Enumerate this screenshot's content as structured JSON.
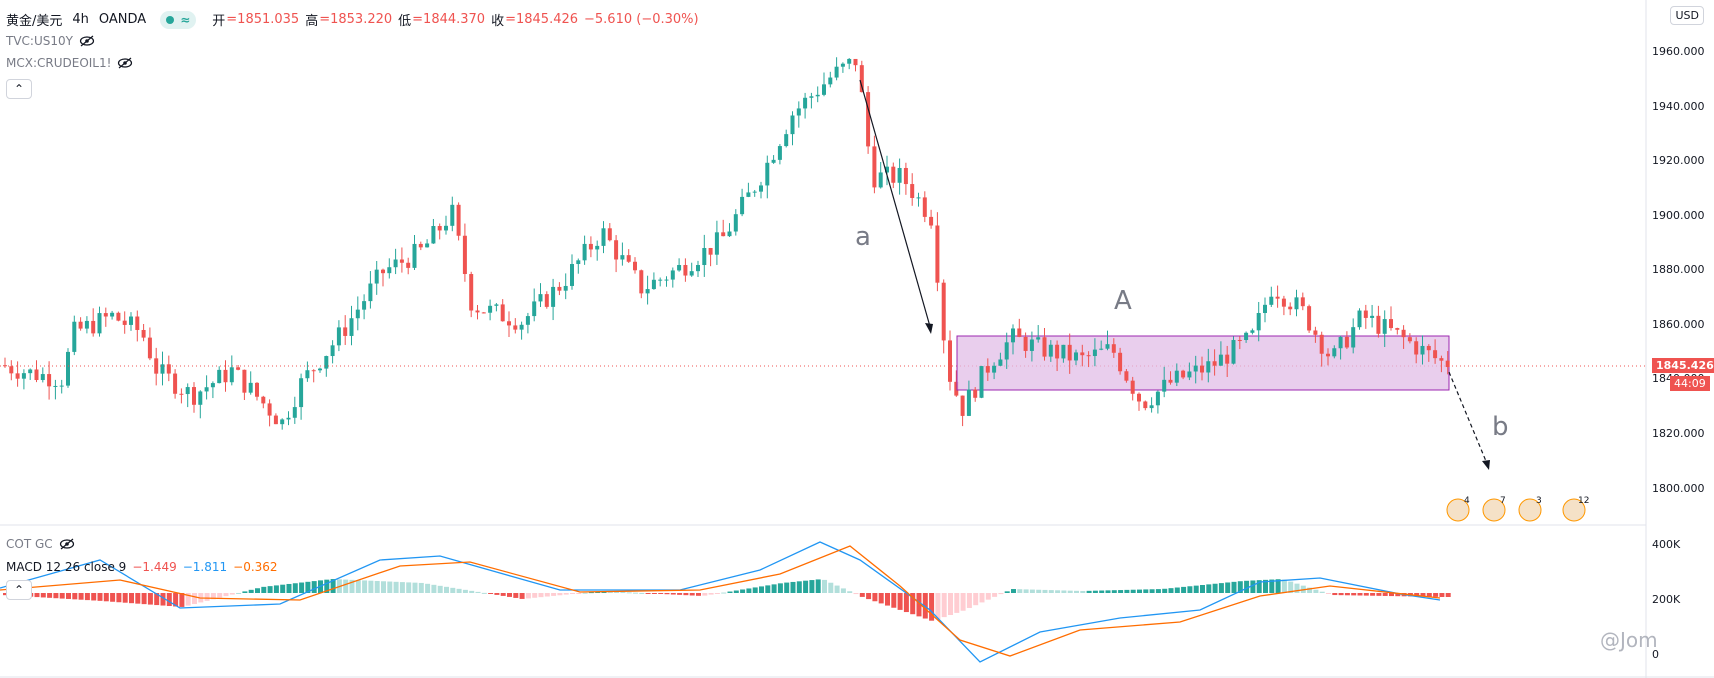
{
  "header": {
    "symbol": "黄金/美元",
    "interval": "4h",
    "broker": "OANDA",
    "open_label": "开",
    "open_value": "=1851.035",
    "high_label": "高",
    "high_value": "=1853.220",
    "low_label": "低",
    "low_value": "=1844.370",
    "close_label": "收",
    "close_value": "=1845.426",
    "change": "−5.610 (−0.30%)"
  },
  "overlays": [
    "TVC:US10Y",
    "MCX:CRUDEOIL1!"
  ],
  "currency": "USD",
  "price_axis": [
    "1960.000",
    "1940.000",
    "1920.000",
    "1900.000",
    "1880.000",
    "1860.000",
    "1840.000",
    "1820.000",
    "1800.000"
  ],
  "last_price": "1845.426",
  "countdown": "44:09",
  "annotations": {
    "wave_a": "a",
    "wave_A": "A",
    "wave_b": "b"
  },
  "events": [
    "4",
    "7",
    "3",
    "12"
  ],
  "cot": {
    "label": "COT GC"
  },
  "macd": {
    "label": "MACD 12 26 close 9",
    "hist": "−1.449",
    "macd": "−1.811",
    "signal": "−0.362"
  },
  "volume_axis": [
    "400K",
    "200K",
    "0"
  ],
  "watermark": "@Jom",
  "colors": {
    "up": "#26a69a",
    "down": "#ef5350",
    "box": "#e1bee7",
    "box_border": "#9c27b0"
  }
}
